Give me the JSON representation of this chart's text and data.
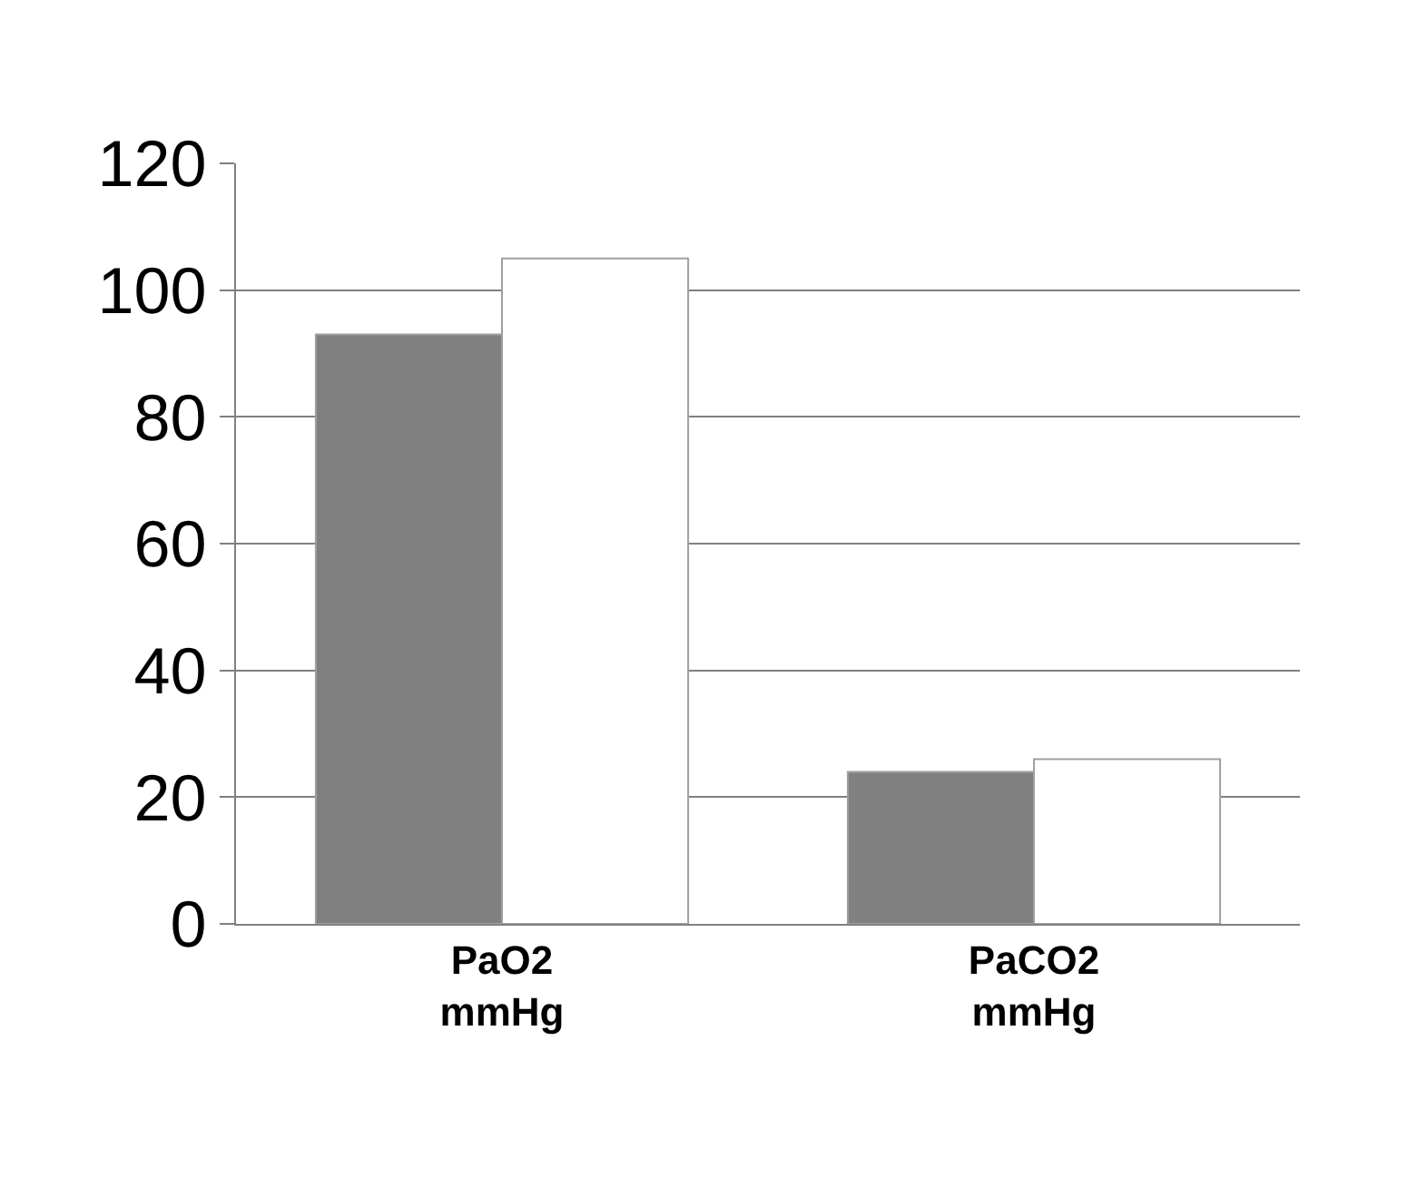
{
  "chart_data": {
    "type": "bar",
    "categories": [
      "PaO2\nmmHg",
      "PaCO2\nmmHg"
    ],
    "series": [
      {
        "color": "#808080",
        "values": [
          93,
          24
        ]
      },
      {
        "color": "#ffffff",
        "values": [
          105,
          26
        ]
      }
    ],
    "ylim": [
      0,
      120
    ],
    "yticks": [
      0,
      20,
      40,
      60,
      80,
      100,
      120
    ],
    "grid": "y"
  }
}
